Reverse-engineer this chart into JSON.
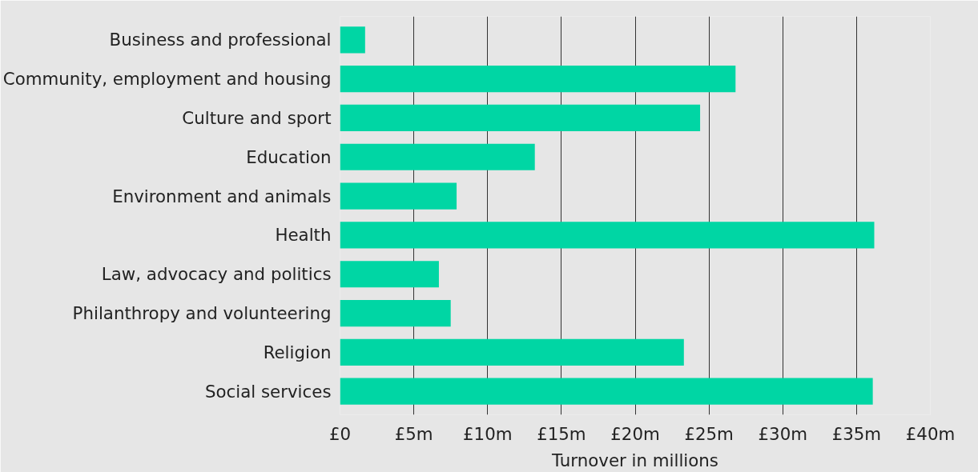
{
  "chart_data": {
    "type": "bar",
    "orientation": "horizontal",
    "xlabel": "Turnover in millions",
    "categories": [
      "Business and professional",
      "Community, employment and housing",
      "Culture and sport",
      "Education",
      "Environment and animals",
      "Health",
      "Law, advocacy and politics",
      "Philanthropy and volunteering",
      "Religion",
      "Social services"
    ],
    "values": [
      1.7,
      26.8,
      24.4,
      13.2,
      7.9,
      36.2,
      6.7,
      7.5,
      23.3,
      36.1
    ],
    "color": "#00d6a4",
    "xlim": [
      0,
      40
    ],
    "xticks": [
      {
        "value": 0,
        "label": "£0"
      },
      {
        "value": 5,
        "label": "£5m"
      },
      {
        "value": 10,
        "label": "£10m"
      },
      {
        "value": 15,
        "label": "£15m"
      },
      {
        "value": 20,
        "label": "£20m"
      },
      {
        "value": 25,
        "label": "£25m"
      },
      {
        "value": 30,
        "label": "£30m"
      },
      {
        "value": 35,
        "label": "£35m"
      },
      {
        "value": 40,
        "label": "£40m"
      }
    ],
    "grid": "x"
  }
}
